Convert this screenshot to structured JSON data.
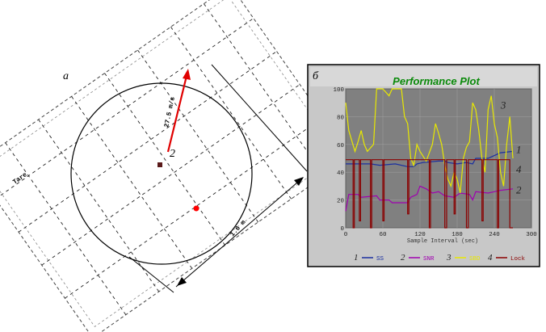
{
  "panel_a": {
    "letter": "a",
    "arrow_label": "27.5 m/s",
    "arrow_number": "2",
    "side_label": "Tare",
    "dimension_label": "1.6 m",
    "marker_colors": {
      "dark": "#5a1a1a",
      "red": "#ff0000",
      "arrow": "#e00000"
    }
  },
  "panel_b": {
    "letter": "б",
    "window_colors": {
      "frame": "#c8c8c8",
      "plot_bg": "#808080",
      "border": "#000000"
    }
  },
  "chart_data": {
    "type": "line",
    "title": "Performance Plot",
    "xlabel": "Sample Interval (sec)",
    "ylabel": "",
    "xlim": [
      0,
      300
    ],
    "ylim": [
      0,
      100
    ],
    "x_ticks": [
      "0",
      "60",
      "120",
      "180",
      "240",
      "300"
    ],
    "y_ticks": [
      "0",
      "20",
      "40",
      "60",
      "80",
      "100"
    ],
    "grid": true,
    "series": [
      {
        "name": "SS",
        "number": "1",
        "color": "#1a2fa0",
        "points": [
          [
            0,
            46
          ],
          [
            40,
            46
          ],
          [
            55,
            45
          ],
          [
            80,
            46
          ],
          [
            100,
            44
          ],
          [
            110,
            44
          ],
          [
            115,
            46
          ],
          [
            125,
            47
          ],
          [
            150,
            48
          ],
          [
            160,
            48
          ],
          [
            165,
            47
          ],
          [
            180,
            46
          ],
          [
            195,
            47
          ],
          [
            205,
            46
          ],
          [
            210,
            50
          ],
          [
            230,
            50
          ],
          [
            240,
            52
          ],
          [
            250,
            54
          ],
          [
            270,
            55
          ]
        ]
      },
      {
        "name": "SNR",
        "number": "2",
        "color": "#a000b0",
        "points": [
          [
            0,
            12
          ],
          [
            5,
            24
          ],
          [
            20,
            24
          ],
          [
            25,
            22
          ],
          [
            50,
            23
          ],
          [
            55,
            20
          ],
          [
            70,
            20
          ],
          [
            75,
            18
          ],
          [
            100,
            18
          ],
          [
            105,
            22
          ],
          [
            115,
            24
          ],
          [
            120,
            30
          ],
          [
            130,
            28
          ],
          [
            140,
            25
          ],
          [
            150,
            26
          ],
          [
            160,
            23
          ],
          [
            175,
            22
          ],
          [
            185,
            25
          ],
          [
            200,
            24
          ],
          [
            205,
            20
          ],
          [
            210,
            26
          ],
          [
            230,
            25
          ],
          [
            240,
            26
          ],
          [
            250,
            27
          ],
          [
            270,
            28
          ]
        ]
      },
      {
        "name": "SBD",
        "number": "3",
        "color": "#e8e800",
        "points": [
          [
            0,
            90
          ],
          [
            5,
            70
          ],
          [
            15,
            55
          ],
          [
            20,
            62
          ],
          [
            25,
            70
          ],
          [
            30,
            60
          ],
          [
            35,
            55
          ],
          [
            45,
            60
          ],
          [
            50,
            100
          ],
          [
            60,
            100
          ],
          [
            70,
            95
          ],
          [
            75,
            100
          ],
          [
            90,
            100
          ],
          [
            95,
            80
          ],
          [
            100,
            75
          ],
          [
            105,
            50
          ],
          [
            110,
            45
          ],
          [
            115,
            60
          ],
          [
            120,
            55
          ],
          [
            130,
            48
          ],
          [
            140,
            60
          ],
          [
            145,
            75
          ],
          [
            150,
            68
          ],
          [
            155,
            60
          ],
          [
            160,
            45
          ],
          [
            165,
            35
          ],
          [
            170,
            30
          ],
          [
            175,
            40
          ],
          [
            180,
            35
          ],
          [
            185,
            25
          ],
          [
            190,
            50
          ],
          [
            195,
            58
          ],
          [
            200,
            62
          ],
          [
            205,
            90
          ],
          [
            210,
            85
          ],
          [
            215,
            70
          ],
          [
            220,
            50
          ],
          [
            225,
            40
          ],
          [
            230,
            85
          ],
          [
            235,
            95
          ],
          [
            240,
            75
          ],
          [
            245,
            65
          ],
          [
            250,
            40
          ],
          [
            255,
            30
          ],
          [
            260,
            60
          ],
          [
            265,
            80
          ],
          [
            270,
            50
          ]
        ]
      },
      {
        "name": "Lock",
        "number": "4",
        "color": "#8a0000",
        "points": [
          [
            0,
            49
          ],
          [
            12,
            49
          ],
          [
            12,
            0
          ],
          [
            14,
            0
          ],
          [
            14,
            49
          ],
          [
            22,
            49
          ],
          [
            22,
            5
          ],
          [
            24,
            5
          ],
          [
            24,
            49
          ],
          [
            40,
            49
          ],
          [
            40,
            0
          ],
          [
            42,
            0
          ],
          [
            42,
            49
          ],
          [
            60,
            49
          ],
          [
            60,
            5
          ],
          [
            62,
            5
          ],
          [
            62,
            49
          ],
          [
            100,
            49
          ],
          [
            100,
            10
          ],
          [
            102,
            10
          ],
          [
            102,
            49
          ],
          [
            135,
            49
          ],
          [
            135,
            0
          ],
          [
            137,
            0
          ],
          [
            137,
            49
          ],
          [
            160,
            49
          ],
          [
            160,
            0
          ],
          [
            163,
            0
          ],
          [
            163,
            49
          ],
          [
            175,
            49
          ],
          [
            175,
            10
          ],
          [
            177,
            10
          ],
          [
            177,
            49
          ],
          [
            195,
            49
          ],
          [
            195,
            0
          ],
          [
            198,
            0
          ],
          [
            198,
            49
          ],
          [
            220,
            49
          ],
          [
            220,
            5
          ],
          [
            222,
            5
          ],
          [
            222,
            49
          ],
          [
            245,
            49
          ],
          [
            245,
            0
          ],
          [
            247,
            0
          ],
          [
            247,
            49
          ],
          [
            265,
            49
          ],
          [
            265,
            0
          ],
          [
            270,
            0
          ]
        ]
      }
    ]
  }
}
